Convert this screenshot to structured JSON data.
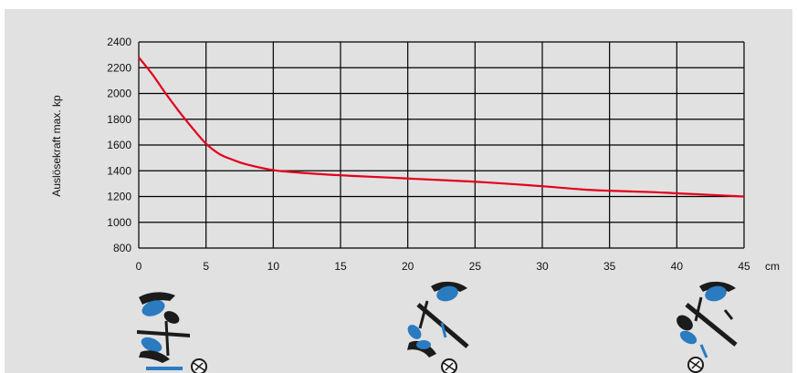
{
  "chart_data": {
    "type": "line",
    "title": "",
    "ylabel": "Auslösekraft max. kp",
    "xlabel": "cm",
    "xlim": [
      0,
      45
    ],
    "ylim": [
      800,
      2400
    ],
    "x_ticks": [
      "0",
      "5",
      "10",
      "15",
      "20",
      "25",
      "30",
      "35",
      "40",
      "45"
    ],
    "y_ticks": [
      "800",
      "1000",
      "1200",
      "1400",
      "1600",
      "1800",
      "2000",
      "2200",
      "2400"
    ],
    "grid": true,
    "series": [
      {
        "color": "#e3001b",
        "x": [
          0,
          1,
          2,
          3,
          4,
          5,
          6,
          7,
          8,
          10,
          12,
          15,
          18,
          20,
          22,
          25,
          28,
          30,
          33,
          35,
          38,
          40,
          43,
          45
        ],
        "y": [
          2280,
          2150,
          2000,
          1860,
          1730,
          1610,
          1530,
          1485,
          1450,
          1405,
          1385,
          1365,
          1350,
          1340,
          1330,
          1315,
          1295,
          1280,
          1255,
          1245,
          1235,
          1225,
          1210,
          1200
        ]
      }
    ]
  },
  "colors": {
    "background": "#e1e1e1",
    "curve": "#e3001b",
    "grid": "#000000",
    "figure_blue": "#2a7bc0",
    "figure_dark": "#1b1b1b"
  },
  "illustrations": [
    "skier-fall-icon",
    "skier-fall-icon",
    "skier-fall-icon"
  ]
}
